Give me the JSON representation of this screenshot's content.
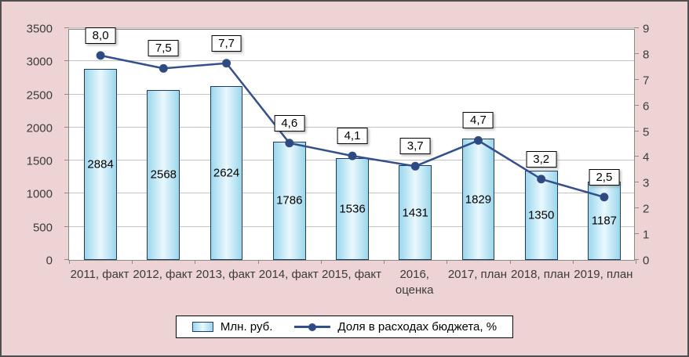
{
  "colors": {
    "background": "#edd3d3",
    "plot_background": "#ffffff",
    "bar_fill_edge": "#9bd7ec",
    "bar_fill_center": "#e9f8fd",
    "bar_border": "#1f3a5f",
    "line": "#33508c",
    "marker": "#2e4a80",
    "grid": "#c3c3c3",
    "axis_text": "#3b3b3b"
  },
  "chart_data": {
    "type": "bar",
    "subtype": "combo-bar-line",
    "categories": [
      "2011, факт",
      "2012, факт",
      "2013, факт",
      "2014, факт",
      "2015, факт",
      "2016,\nоценка",
      "2017, план",
      "2018, план",
      "2019, план"
    ],
    "series": [
      {
        "name": "Млн. руб.",
        "type": "bar",
        "axis": "left",
        "values": [
          2884,
          2568,
          2624,
          1786,
          1536,
          1431,
          1829,
          1350,
          1187
        ],
        "labels": [
          "2884",
          "2568",
          "2624",
          "1786",
          "1536",
          "1431",
          "1829",
          "1350",
          "1187"
        ]
      },
      {
        "name": "Доля в расходах бюджета, %",
        "type": "line",
        "axis": "right",
        "values": [
          8.0,
          7.5,
          7.7,
          4.6,
          4.1,
          3.7,
          4.7,
          3.2,
          2.5
        ],
        "labels": [
          "8,0",
          "7,5",
          "7,7",
          "4,6",
          "4,1",
          "3,7",
          "4,7",
          "3,2",
          "2,5"
        ]
      }
    ],
    "left_axis": {
      "min": 0,
      "max": 3500,
      "step": 500,
      "ticks": [
        "0",
        "500",
        "1000",
        "1500",
        "2000",
        "2500",
        "3000",
        "3500"
      ]
    },
    "right_axis": {
      "min": 0,
      "max": 9,
      "step": 1,
      "ticks": [
        "0",
        "1",
        "2",
        "3",
        "4",
        "5",
        "6",
        "7",
        "8",
        "9"
      ]
    },
    "grid": true,
    "legend_position": "bottom",
    "legend": [
      "Млн. руб.",
      "Доля в расходах бюджета, %"
    ]
  }
}
